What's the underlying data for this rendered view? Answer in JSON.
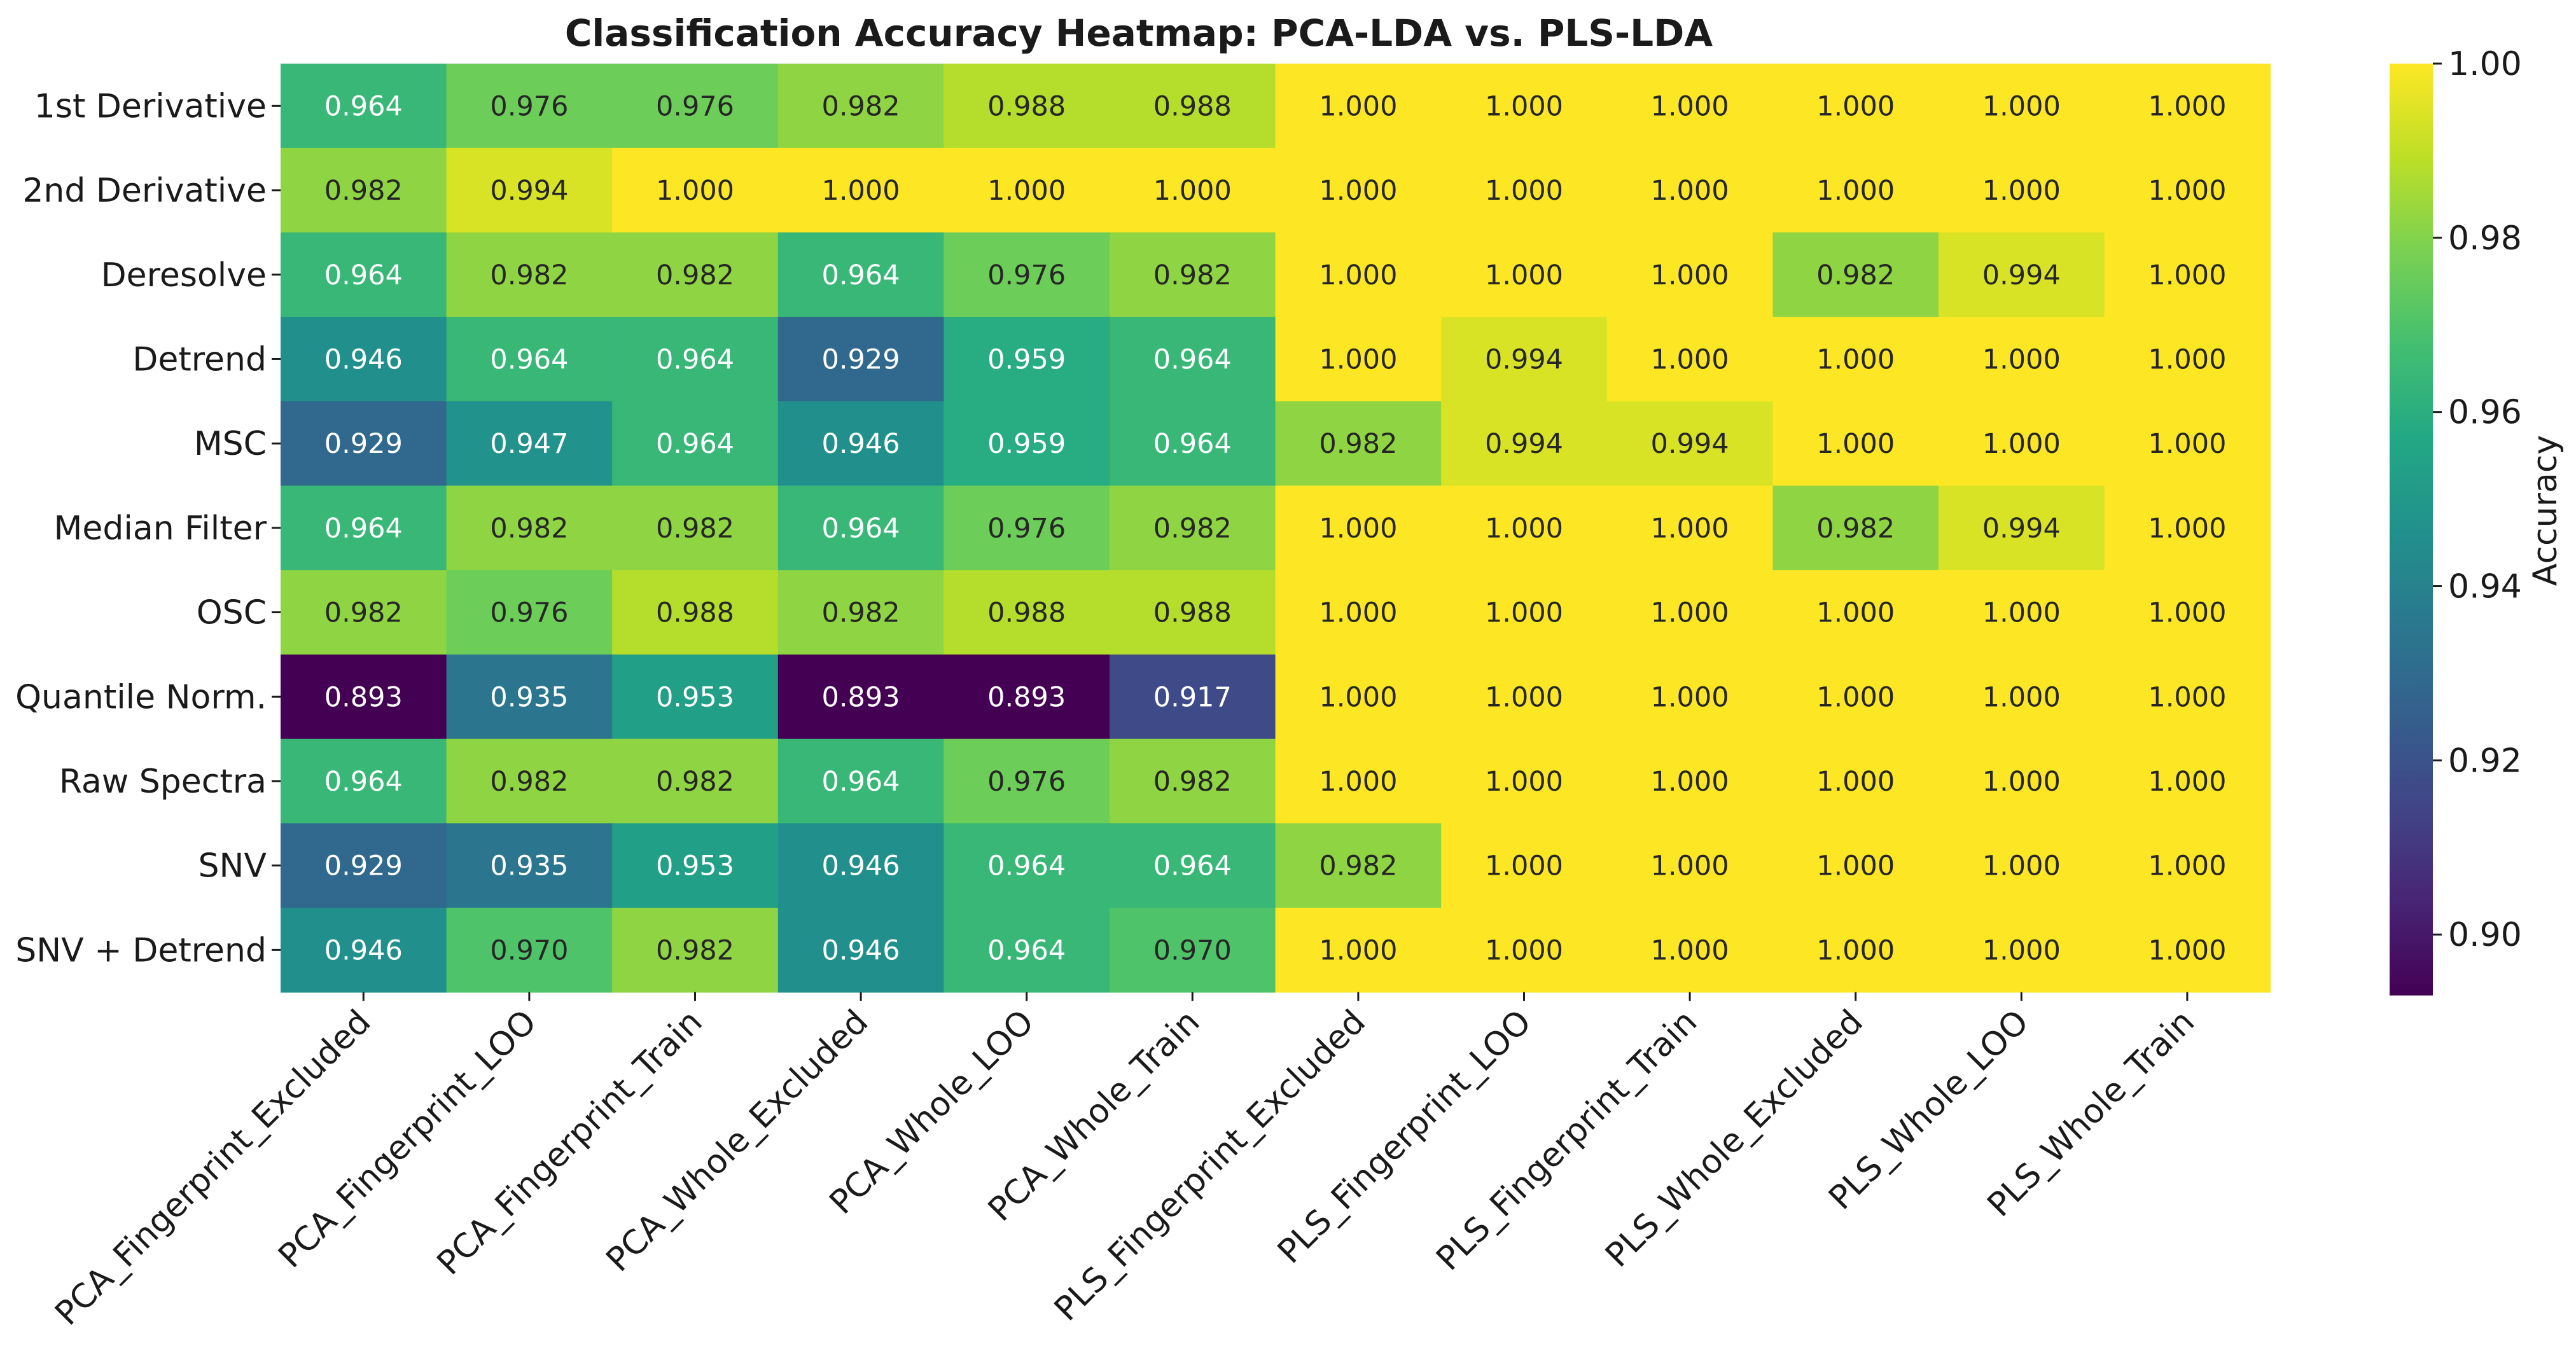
{
  "chart_data": {
    "type": "heatmap",
    "title": "Classification Accuracy Heatmap: PCA-LDA vs. PLS-LDA",
    "rows": [
      "1st Derivative",
      "2nd Derivative",
      "Deresolve",
      "Detrend",
      "MSC",
      "Median Filter",
      "OSC",
      "Quantile Norm.",
      "Raw Spectra",
      "SNV",
      "SNV + Detrend"
    ],
    "columns": [
      "PCA_Fingerprint_Excluded",
      "PCA_Fingerprint_LOO",
      "PCA_Fingerprint_Train",
      "PCA_Whole_Excluded",
      "PCA_Whole_LOO",
      "PCA_Whole_Train",
      "PLS_Fingerprint_Excluded",
      "PLS_Fingerprint_LOO",
      "PLS_Fingerprint_Train",
      "PLS_Whole_Excluded",
      "PLS_Whole_LOO",
      "PLS_Whole_Train"
    ],
    "values": [
      [
        0.964,
        0.976,
        0.976,
        0.982,
        0.988,
        0.988,
        1.0,
        1.0,
        1.0,
        1.0,
        1.0,
        1.0
      ],
      [
        0.982,
        0.994,
        1.0,
        1.0,
        1.0,
        1.0,
        1.0,
        1.0,
        1.0,
        1.0,
        1.0,
        1.0
      ],
      [
        0.964,
        0.982,
        0.982,
        0.964,
        0.976,
        0.982,
        1.0,
        1.0,
        1.0,
        0.982,
        0.994,
        1.0
      ],
      [
        0.946,
        0.964,
        0.964,
        0.929,
        0.959,
        0.964,
        1.0,
        0.994,
        1.0,
        1.0,
        1.0,
        1.0
      ],
      [
        0.929,
        0.947,
        0.964,
        0.946,
        0.959,
        0.964,
        0.982,
        0.994,
        0.994,
        1.0,
        1.0,
        1.0
      ],
      [
        0.964,
        0.982,
        0.982,
        0.964,
        0.976,
        0.982,
        1.0,
        1.0,
        1.0,
        0.982,
        0.994,
        1.0
      ],
      [
        0.982,
        0.976,
        0.988,
        0.982,
        0.988,
        0.988,
        1.0,
        1.0,
        1.0,
        1.0,
        1.0,
        1.0
      ],
      [
        0.893,
        0.935,
        0.953,
        0.893,
        0.893,
        0.917,
        1.0,
        1.0,
        1.0,
        1.0,
        1.0,
        1.0
      ],
      [
        0.964,
        0.982,
        0.982,
        0.964,
        0.976,
        0.982,
        1.0,
        1.0,
        1.0,
        1.0,
        1.0,
        1.0
      ],
      [
        0.929,
        0.935,
        0.953,
        0.946,
        0.964,
        0.964,
        0.982,
        1.0,
        1.0,
        1.0,
        1.0,
        1.0
      ],
      [
        0.946,
        0.97,
        0.982,
        0.946,
        0.964,
        0.97,
        1.0,
        1.0,
        1.0,
        1.0,
        1.0,
        1.0
      ]
    ],
    "colorbar": {
      "label": "Accuracy",
      "range": [
        0.893,
        1.0
      ],
      "ticks": [
        "0.90",
        "0.92",
        "0.94",
        "0.96",
        "0.98",
        "1.00"
      ],
      "colormap": "viridis"
    }
  }
}
